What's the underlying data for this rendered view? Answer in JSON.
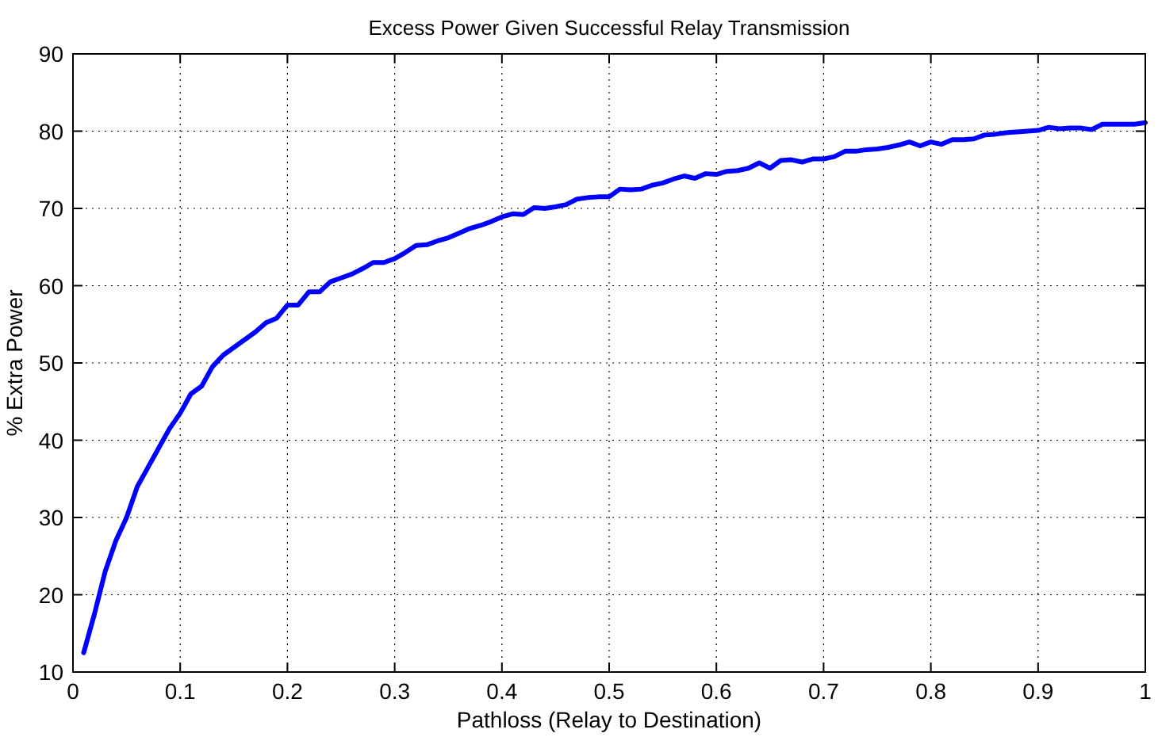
{
  "chart_data": {
    "type": "line",
    "title": "Excess Power Given Successful Relay Transmission",
    "xlabel": "Pathloss (Relay to Destination)",
    "ylabel": "% Extra Power",
    "x": [
      0.01,
      0.02,
      0.03,
      0.04,
      0.05,
      0.06,
      0.07,
      0.08,
      0.09,
      0.1,
      0.11,
      0.12,
      0.13,
      0.14,
      0.15,
      0.16,
      0.17,
      0.18,
      0.19,
      0.2,
      0.21,
      0.22,
      0.23,
      0.24,
      0.25,
      0.26,
      0.27,
      0.28,
      0.29,
      0.3,
      0.31,
      0.32,
      0.33,
      0.34,
      0.35,
      0.36,
      0.37,
      0.38,
      0.39,
      0.4,
      0.41,
      0.42,
      0.43,
      0.44,
      0.45,
      0.46,
      0.47,
      0.48,
      0.49,
      0.5,
      0.51,
      0.52,
      0.53,
      0.54,
      0.55,
      0.56,
      0.57,
      0.58,
      0.59,
      0.6,
      0.61,
      0.62,
      0.63,
      0.64,
      0.65,
      0.66,
      0.67,
      0.68,
      0.69,
      0.7,
      0.71,
      0.72,
      0.73,
      0.74,
      0.75,
      0.76,
      0.77,
      0.78,
      0.79,
      0.8,
      0.81,
      0.82,
      0.83,
      0.84,
      0.85,
      0.86,
      0.87,
      0.88,
      0.89,
      0.9,
      0.91,
      0.92,
      0.93,
      0.94,
      0.95,
      0.96,
      0.97,
      0.98,
      0.99,
      1
    ],
    "series": [
      {
        "color": "#0000ff",
        "values": [
          12.5,
          17.5,
          23,
          27,
          30,
          34,
          36.5,
          39,
          41.5,
          43.5,
          46,
          47,
          49.5,
          51,
          52,
          53,
          54,
          55.2,
          55.8,
          57.5,
          57.5,
          59.2,
          59.2,
          60.5,
          61,
          61.5,
          62.2,
          63,
          63,
          63.5,
          64.3,
          65.2,
          65.3,
          65.8,
          66.2,
          66.8,
          67.4,
          67.8,
          68.3,
          68.9,
          69.3,
          69.2,
          70.1,
          70,
          70.2,
          70.5,
          71.2,
          71.4,
          71.5,
          71.5,
          72.5,
          72.4,
          72.5,
          73,
          73.3,
          73.8,
          74.2,
          73.9,
          74.5,
          74.4,
          74.8,
          74.9,
          75.2,
          75.9,
          75.2,
          76.2,
          76.3,
          76,
          76.4,
          76.4,
          76.7,
          77.4,
          77.4,
          77.6,
          77.7,
          77.9,
          78.2,
          78.6,
          78.1,
          78.6,
          78.3,
          78.9,
          78.9,
          79,
          79.5,
          79.6,
          79.8,
          79.9,
          80,
          80.1,
          80.5,
          80.3,
          80.4,
          80.4,
          80.2,
          80.9,
          80.9,
          80.9,
          80.9,
          81.1
        ]
      }
    ],
    "xlim": [
      0,
      1
    ],
    "xticks": [
      0,
      0.1,
      0.2,
      0.3,
      0.4,
      0.5,
      0.6,
      0.7,
      0.8,
      0.9,
      1
    ],
    "ylim": [
      10,
      90
    ],
    "yticks": [
      10,
      20,
      30,
      40,
      50,
      60,
      70,
      80,
      90
    ],
    "grid": true,
    "line_style": "solid",
    "marker": "none"
  }
}
